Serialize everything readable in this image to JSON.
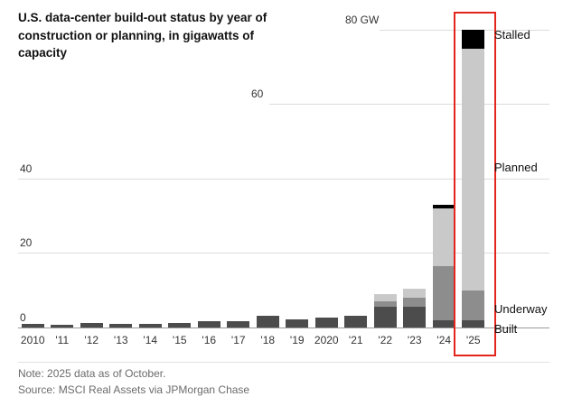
{
  "title": "U.S. data-center build-out status by year of construction or planning, in gigawatts of capacity",
  "footer": {
    "note": "Note: 2025 data as of October.",
    "source": "Source: MSCI Real Assets via JPMorgan Chase"
  },
  "annotations": {
    "stalled": "Stalled",
    "planned": "Planned",
    "underway": "Underway",
    "built": "Built"
  },
  "chart_data": {
    "type": "bar",
    "stacked": true,
    "unit": "GW",
    "title": "U.S. data-center build-out status by year of construction or planning, in gigawatts of capacity",
    "categories": [
      "2010",
      "'11",
      "'12",
      "'13",
      "'14",
      "'15",
      "'16",
      "'17",
      "'18",
      "'19",
      "2020",
      "'21",
      "'22",
      "'23",
      "'24",
      "'25"
    ],
    "series": [
      {
        "name": "Built",
        "color": "#4c4c4c",
        "values": [
          1.0,
          0.8,
          1.2,
          1.0,
          1.0,
          1.3,
          1.7,
          1.7,
          3.2,
          2.2,
          2.7,
          3.2,
          5.5,
          5.5,
          2.0,
          2.0
        ]
      },
      {
        "name": "Underway",
        "color": "#8d8d8d",
        "values": [
          0,
          0,
          0,
          0,
          0,
          0,
          0,
          0,
          0,
          0,
          0,
          0,
          1.5,
          2.5,
          14.5,
          8.0
        ]
      },
      {
        "name": "Planned",
        "color": "#c9c9c9",
        "values": [
          0,
          0,
          0,
          0,
          0,
          0,
          0,
          0,
          0,
          0,
          0,
          0,
          2.0,
          2.5,
          15.5,
          65.0
        ]
      },
      {
        "name": "Stalled",
        "color": "#000000",
        "values": [
          0,
          0,
          0,
          0,
          0,
          0,
          0,
          0,
          0,
          0,
          0,
          0,
          0,
          0,
          1.0,
          5.0
        ]
      }
    ],
    "ylim": [
      0,
      80
    ],
    "yticks": [
      0,
      20,
      40,
      60,
      80
    ],
    "ytick_labels": [
      "0",
      "20",
      "40",
      "60",
      "80 GW"
    ],
    "grid": "horizontal",
    "legend_position": "right-annotations",
    "highlight": {
      "category": "'25",
      "color": "#e3251c"
    }
  }
}
